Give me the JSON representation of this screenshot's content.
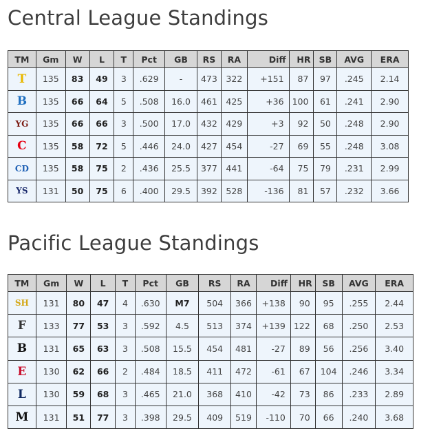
{
  "central": {
    "title": "Central League Standings",
    "headers": [
      "TM",
      "Gm",
      "W",
      "L",
      "T",
      "Pct",
      "GB",
      "RS",
      "RA",
      "Diff",
      "HR",
      "SB",
      "AVG",
      "ERA"
    ],
    "rows": [
      {
        "logo": "tigers-logo-icon",
        "glyph": "T",
        "color": "#e8b800",
        "cells": [
          "135",
          "83",
          "49",
          "3",
          ".629",
          "-",
          "473",
          "322",
          "+151",
          "87",
          "97",
          ".245",
          "2.14"
        ]
      },
      {
        "logo": "baystars-logo-icon",
        "glyph": "B",
        "color": "#1f6fc0",
        "cells": [
          "135",
          "66",
          "64",
          "5",
          ".508",
          "16.0",
          "461",
          "425",
          "+36",
          "100",
          "61",
          ".241",
          "2.90"
        ]
      },
      {
        "logo": "giants-logo-icon",
        "glyph": "YG",
        "color": "#7a1a12",
        "cells": [
          "135",
          "66",
          "66",
          "3",
          ".500",
          "17.0",
          "432",
          "429",
          "+3",
          "92",
          "50",
          ".248",
          "2.90"
        ]
      },
      {
        "logo": "carp-logo-icon",
        "glyph": "C",
        "color": "#e60012",
        "cells": [
          "135",
          "58",
          "72",
          "5",
          ".446",
          "24.0",
          "427",
          "454",
          "-27",
          "69",
          "55",
          ".248",
          "3.08"
        ]
      },
      {
        "logo": "dragons-logo-icon",
        "glyph": "CD",
        "color": "#1d5fb4",
        "cells": [
          "135",
          "58",
          "75",
          "2",
          ".436",
          "25.5",
          "377",
          "441",
          "-64",
          "75",
          "79",
          ".231",
          "2.99"
        ]
      },
      {
        "logo": "swallows-logo-icon",
        "glyph": "YS",
        "color": "#1a2a6c",
        "cells": [
          "131",
          "50",
          "75",
          "6",
          ".400",
          "29.5",
          "392",
          "528",
          "-136",
          "81",
          "57",
          ".232",
          "3.66"
        ]
      }
    ]
  },
  "pacific": {
    "title": "Pacific League Standings",
    "headers": [
      "TM",
      "Gm",
      "W",
      "L",
      "T",
      "Pct",
      "GB",
      "RS",
      "RA",
      "Diff",
      "HR",
      "SB",
      "AVG",
      "ERA"
    ],
    "rows": [
      {
        "logo": "hawks-logo-icon",
        "glyph": "SH",
        "color": "#d4a817",
        "cells": [
          "131",
          "80",
          "47",
          "4",
          ".630",
          "M7",
          "504",
          "366",
          "+138",
          "90",
          "95",
          ".255",
          "2.44"
        ]
      },
      {
        "logo": "fighters-logo-icon",
        "glyph": "F",
        "color": "#333333",
        "cells": [
          "133",
          "77",
          "53",
          "3",
          ".592",
          "4.5",
          "513",
          "374",
          "+139",
          "122",
          "68",
          ".250",
          "2.53"
        ]
      },
      {
        "logo": "buffaloes-logo-icon",
        "glyph": "B",
        "color": "#111111",
        "cells": [
          "131",
          "65",
          "63",
          "3",
          ".508",
          "15.5",
          "454",
          "481",
          "-27",
          "89",
          "56",
          ".256",
          "3.40"
        ]
      },
      {
        "logo": "eagles-logo-icon",
        "glyph": "E",
        "color": "#c8102e",
        "cells": [
          "130",
          "62",
          "66",
          "2",
          ".484",
          "18.5",
          "411",
          "472",
          "-61",
          "67",
          "104",
          ".246",
          "3.34"
        ]
      },
      {
        "logo": "lions-logo-icon",
        "glyph": "L",
        "color": "#102961",
        "cells": [
          "130",
          "59",
          "68",
          "3",
          ".465",
          "21.0",
          "368",
          "410",
          "-42",
          "73",
          "86",
          ".233",
          "2.89"
        ]
      },
      {
        "logo": "marines-logo-icon",
        "glyph": "M",
        "color": "#111111",
        "cells": [
          "131",
          "51",
          "77",
          "3",
          ".398",
          "29.5",
          "409",
          "519",
          "-110",
          "70",
          "66",
          ".240",
          "3.68"
        ]
      }
    ]
  }
}
